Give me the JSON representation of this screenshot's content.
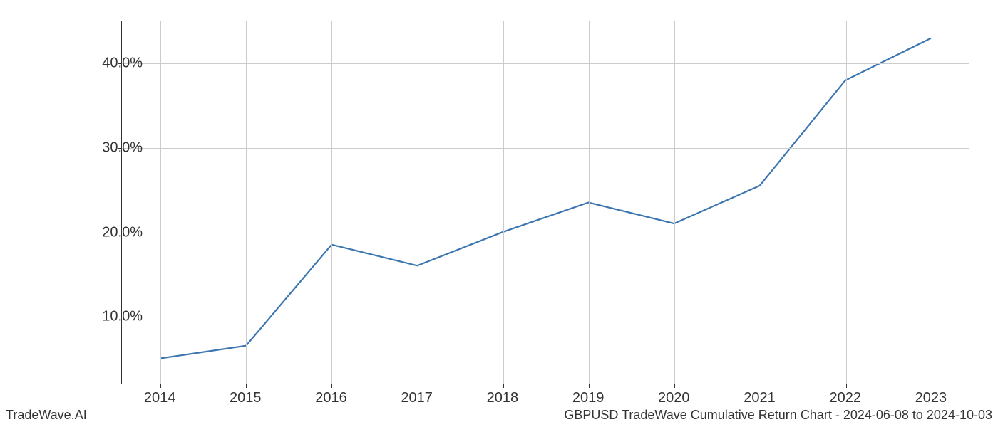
{
  "chart": {
    "type": "line",
    "x_labels": [
      "2014",
      "2015",
      "2016",
      "2017",
      "2018",
      "2019",
      "2020",
      "2021",
      "2022",
      "2023"
    ],
    "x_values": [
      2014,
      2015,
      2016,
      2017,
      2018,
      2019,
      2020,
      2021,
      2022,
      2023
    ],
    "y_values": [
      5.0,
      6.5,
      18.5,
      16.0,
      20.0,
      23.5,
      21.0,
      25.5,
      38.0,
      43.0
    ],
    "y_tick_labels": [
      "10.0%",
      "20.0%",
      "30.0%",
      "40.0%"
    ],
    "y_tick_values": [
      10,
      20,
      30,
      40
    ],
    "x_plot_min": 2013.55,
    "x_plot_max": 2023.45,
    "ylim": [
      2.0,
      45.0
    ],
    "line_color": "#3c76b0",
    "line_width": 2.2,
    "grid_color": "#cccccc",
    "background_color": "#ffffff",
    "axis_color": "#333333",
    "tick_fontsize": 20,
    "footer_fontsize": 18
  },
  "footer": {
    "left": "TradeWave.AI",
    "right": "GBPUSD TradeWave Cumulative Return Chart - 2024-06-08 to 2024-10-03"
  }
}
